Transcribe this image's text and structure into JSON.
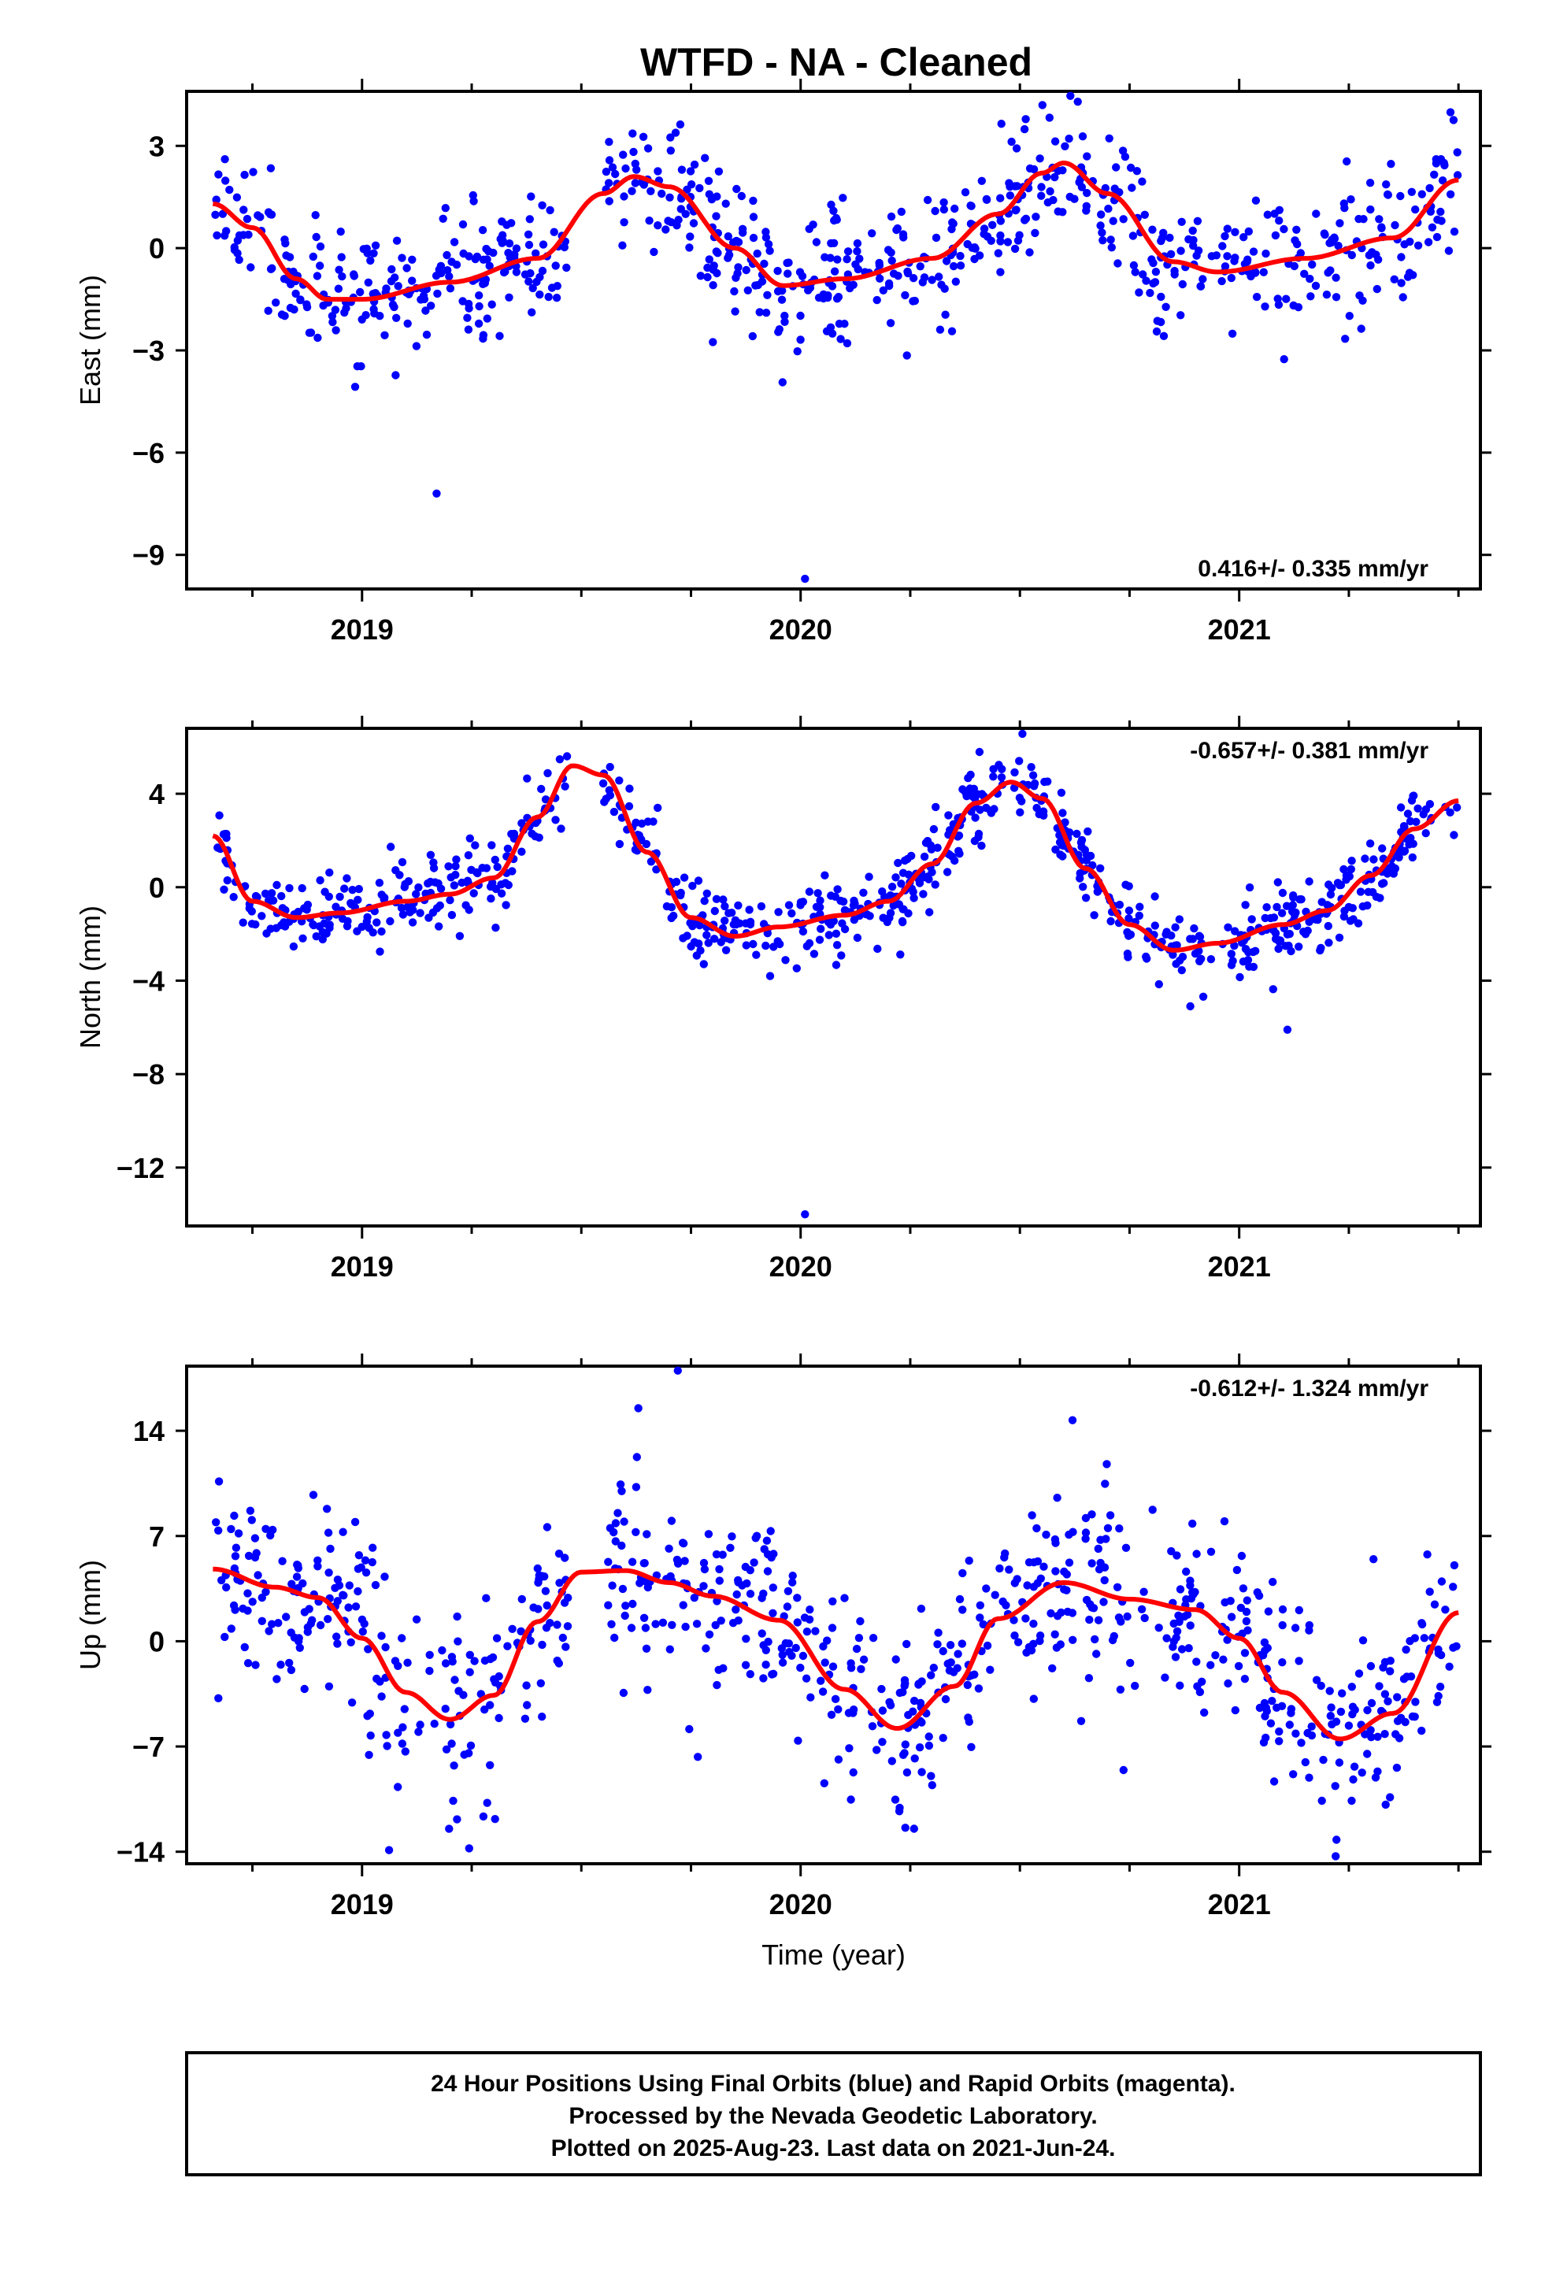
{
  "title": "WTFD  - NA - Cleaned",
  "chart_data": [
    {
      "type": "scatter",
      "ylabel": "East (mm)",
      "xlim": [
        2018.6,
        2021.55
      ],
      "ylim": [
        -10.0,
        4.6
      ],
      "yticks": [
        3,
        0,
        -3,
        -6,
        -9
      ],
      "ytick_labels": [
        "3",
        "0",
        "−3",
        "−6",
        "−9"
      ],
      "xticks": [
        2019,
        2020,
        2021
      ],
      "xtick_labels": [
        "2019",
        "2020",
        "2021"
      ],
      "rate_text": "0.416+/- 0.335 mm/yr",
      "rate_position": "bottom-right",
      "fit_x": [
        2018.66,
        2018.75,
        2018.85,
        2018.92,
        2019.0,
        2019.2,
        2019.4,
        2019.55,
        2019.62,
        2019.7,
        2019.85,
        2019.96,
        2020.1,
        2020.3,
        2020.45,
        2020.55,
        2020.6,
        2020.7,
        2020.85,
        2020.95,
        2021.15,
        2021.35,
        2021.5
      ],
      "fit_y": [
        1.3,
        0.6,
        -0.9,
        -1.5,
        -1.5,
        -1.0,
        -0.3,
        1.6,
        2.1,
        1.8,
        0.0,
        -1.1,
        -0.9,
        -0.3,
        1.0,
        2.2,
        2.5,
        1.6,
        -0.4,
        -0.7,
        -0.3,
        0.3,
        2.0
      ],
      "outliers": [
        [
          2019.17,
          -7.2
        ],
        [
          2020.01,
          -9.7
        ]
      ],
      "noise": 0.95
    },
    {
      "type": "scatter",
      "ylabel": "North (mm)",
      "xlim": [
        2018.6,
        2021.55
      ],
      "ylim": [
        -14.5,
        6.8
      ],
      "yticks": [
        4,
        0,
        -4,
        -8,
        -12
      ],
      "ytick_labels": [
        "4",
        "0",
        "−4",
        "−8",
        "−12"
      ],
      "xticks": [
        2019,
        2020,
        2021
      ],
      "xtick_labels": [
        "2019",
        "2020",
        "2021"
      ],
      "rate_text": "-0.657+/- 0.381 mm/yr",
      "rate_position": "top-right",
      "fit_x": [
        2018.66,
        2018.75,
        2018.85,
        2018.95,
        2019.1,
        2019.2,
        2019.3,
        2019.4,
        2019.48,
        2019.55,
        2019.65,
        2019.75,
        2019.85,
        2019.95,
        2020.1,
        2020.2,
        2020.3,
        2020.4,
        2020.48,
        2020.55,
        2020.65,
        2020.75,
        2020.85,
        2020.95,
        2021.1,
        2021.2,
        2021.3,
        2021.4,
        2021.5
      ],
      "fit_y": [
        2.2,
        -0.6,
        -1.3,
        -1.1,
        -0.6,
        -0.3,
        0.4,
        3.0,
        5.2,
        4.8,
        1.5,
        -1.3,
        -2.1,
        -1.7,
        -1.2,
        -0.6,
        1.0,
        3.6,
        4.5,
        3.8,
        0.8,
        -1.6,
        -2.7,
        -2.4,
        -1.6,
        -1.0,
        0.5,
        2.5,
        3.7
      ],
      "outliers": [
        [
          2020.01,
          -14.0
        ],
        [
          2021.11,
          -6.1
        ]
      ],
      "noise": 0.85
    },
    {
      "type": "scatter",
      "ylabel": "Up (mm)",
      "xlabel": "Time (year)",
      "xlim": [
        2018.6,
        2021.55
      ],
      "ylim": [
        -14.8,
        18.3
      ],
      "yticks": [
        14,
        7,
        0,
        -7,
        -14
      ],
      "ytick_labels": [
        "14",
        "7",
        "0",
        "−7",
        "−14"
      ],
      "xticks": [
        2019,
        2020,
        2021
      ],
      "xtick_labels": [
        "2019",
        "2020",
        "2021"
      ],
      "rate_text": "-0.612+/- 1.324 mm/yr",
      "rate_position": "top-right",
      "fit_x": [
        2018.66,
        2018.8,
        2018.9,
        2019.0,
        2019.1,
        2019.2,
        2019.3,
        2019.4,
        2019.5,
        2019.6,
        2019.7,
        2019.8,
        2019.95,
        2020.1,
        2020.22,
        2020.35,
        2020.45,
        2020.6,
        2020.75,
        2020.9,
        2021.0,
        2021.1,
        2021.23,
        2021.35,
        2021.5
      ],
      "fit_y": [
        4.8,
        3.6,
        2.9,
        0.2,
        -3.4,
        -5.2,
        -3.6,
        1.3,
        4.6,
        4.7,
        3.9,
        3.0,
        1.4,
        -3.2,
        -5.8,
        -3.0,
        1.5,
        3.9,
        2.8,
        2.1,
        0.2,
        -3.4,
        -6.5,
        -4.8,
        1.9
      ],
      "outliers": [
        [
          2019.63,
          15.5
        ],
        [
          2019.72,
          18.0
        ],
        [
          2020.62,
          14.7
        ],
        [
          2021.22,
          -14.3
        ]
      ],
      "noise": 3.3
    }
  ],
  "caption": {
    "line1": "24 Hour Positions Using Final Orbits (blue) and Rapid Orbits (magenta).",
    "line2": "Processed by the Nevada Geodetic Laboratory.",
    "line3": "Plotted on 2025-Aug-23. Last data on 2021-Jun-24."
  },
  "colors": {
    "points": "#0000ff",
    "fit": "#ff0000",
    "frame": "#000000",
    "background": "#ffffff"
  }
}
